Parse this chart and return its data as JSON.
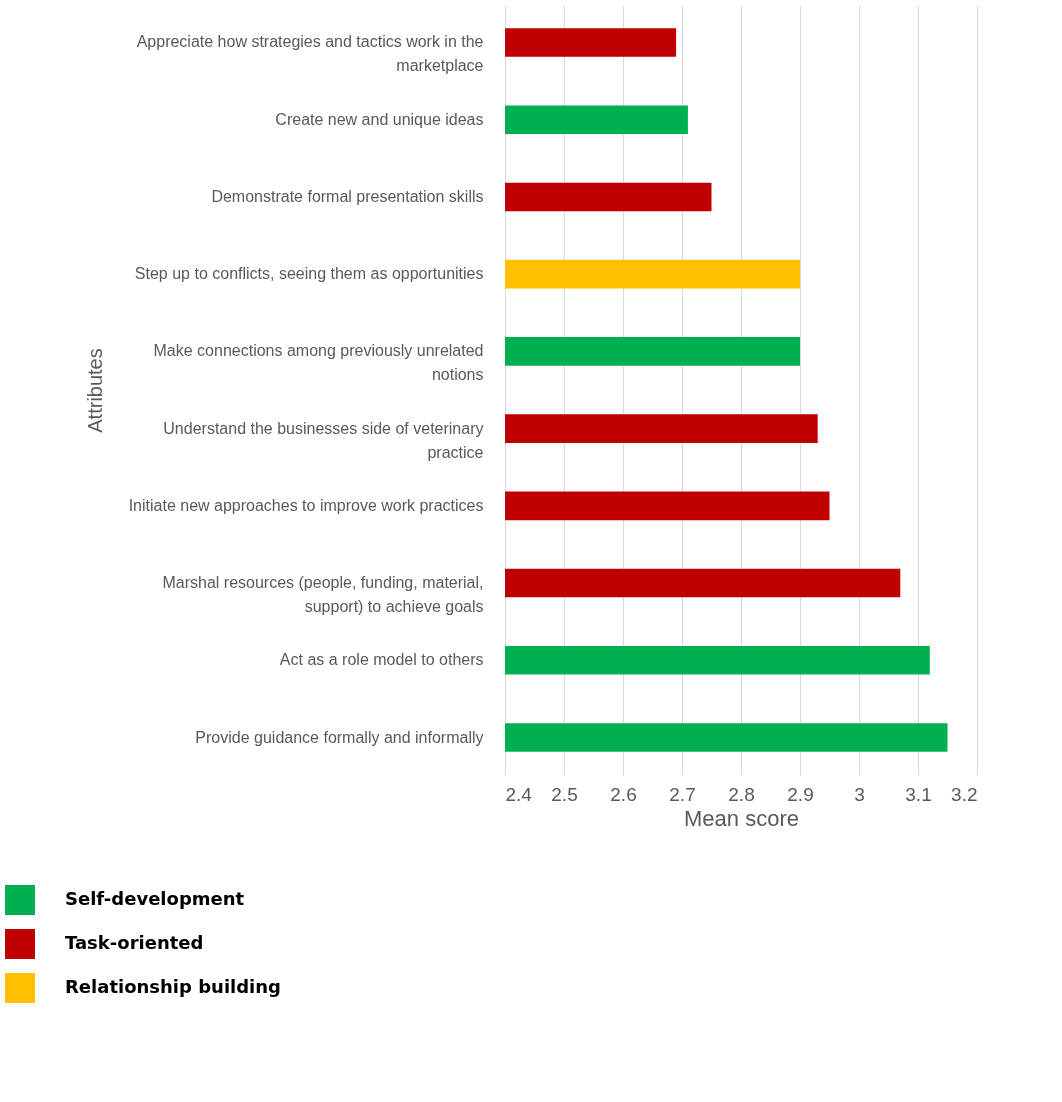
{
  "chart_data": {
    "type": "bar",
    "orientation": "horizontal",
    "xlabel": "Mean score",
    "ylabel": "Attributes",
    "categories": [
      "Appreciate how strategies and tactics work in the marketplace",
      "Create new and unique ideas",
      "Demonstrate formal presentation skills",
      "Step up to conflicts, seeing them as opportunities",
      "Make connections among previously unrelated notions",
      "Understand the  businesses side of veterinary practice",
      "Initiate new approaches to improve work practices",
      "Marshal resources (people, funding, material, support) to achieve goals",
      "Act as a role model to others",
      "Provide guidance formally and informally"
    ],
    "series": [
      {
        "name": "Self-development",
        "color": "#00b050",
        "values": [
          null,
          2.71,
          null,
          null,
          2.9,
          null,
          null,
          null,
          3.12,
          3.15
        ]
      },
      {
        "name": "Task-oriented",
        "color": "#c00000",
        "values": [
          2.69,
          null,
          2.75,
          null,
          null,
          2.93,
          2.95,
          3.07,
          null,
          null
        ]
      },
      {
        "name": "Relationship building",
        "color": "#ffc000",
        "values": [
          null,
          null,
          null,
          2.9,
          null,
          null,
          null,
          null,
          null,
          null
        ]
      }
    ],
    "xlim": [
      2.4,
      3.2
    ],
    "xticks": [
      2.4,
      2.5,
      2.6,
      2.7,
      2.8,
      2.9,
      3,
      3.1,
      3.2
    ],
    "grid": "x",
    "legend": "bottom left"
  }
}
